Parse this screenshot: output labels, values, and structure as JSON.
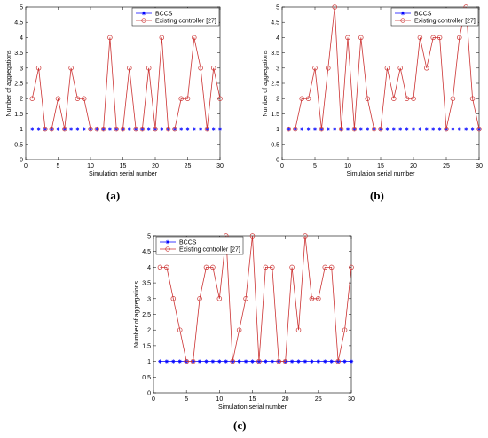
{
  "chart_data": [
    {
      "id": "a",
      "type": "line",
      "caption": "(a)",
      "xlabel": "Simulation serial number",
      "ylabel": "Number of aggregations",
      "xlim": [
        0,
        30
      ],
      "ylim": [
        0,
        5
      ],
      "xticks": [
        0,
        5,
        10,
        15,
        20,
        25,
        30
      ],
      "yticks": [
        0,
        0.5,
        1,
        1.5,
        2,
        2.5,
        3,
        3.5,
        4,
        4.5,
        5
      ],
      "grid": false,
      "legend_position": "top-right",
      "series": [
        {
          "name": "BCCS",
          "color": "#0000ff",
          "marker": "star",
          "x": [
            1,
            2,
            3,
            4,
            5,
            6,
            7,
            8,
            9,
            10,
            11,
            12,
            13,
            14,
            15,
            16,
            17,
            18,
            19,
            20,
            21,
            22,
            23,
            24,
            25,
            26,
            27,
            28,
            29,
            30
          ],
          "values": [
            1,
            1,
            1,
            1,
            1,
            1,
            1,
            1,
            1,
            1,
            1,
            1,
            1,
            1,
            1,
            1,
            1,
            1,
            1,
            1,
            1,
            1,
            1,
            1,
            1,
            1,
            1,
            1,
            1,
            1
          ]
        },
        {
          "name": "Existing controller [27]",
          "color": "#cc3333",
          "marker": "circle",
          "x": [
            1,
            2,
            3,
            4,
            5,
            6,
            7,
            8,
            9,
            10,
            11,
            12,
            13,
            14,
            15,
            16,
            17,
            18,
            19,
            20,
            21,
            22,
            23,
            24,
            25,
            26,
            27,
            28,
            29,
            30
          ],
          "values": [
            2,
            3,
            1,
            1,
            2,
            1,
            3,
            2,
            2,
            1,
            1,
            1,
            4,
            1,
            1,
            3,
            1,
            1,
            3,
            1,
            4,
            1,
            1,
            2,
            2,
            4,
            3,
            1,
            3,
            2
          ]
        }
      ]
    },
    {
      "id": "b",
      "type": "line",
      "caption": "(b)",
      "xlabel": "Simulation serial number",
      "ylabel": "Number of aggregations",
      "xlim": [
        0,
        30
      ],
      "ylim": [
        0,
        5
      ],
      "xticks": [
        0,
        5,
        10,
        15,
        20,
        25,
        30
      ],
      "yticks": [
        0,
        0.5,
        1,
        1.5,
        2,
        2.5,
        3,
        3.5,
        4,
        4.5,
        5
      ],
      "grid": false,
      "legend_position": "top-right",
      "series": [
        {
          "name": "BCCS",
          "color": "#0000ff",
          "marker": "star",
          "x": [
            1,
            2,
            3,
            4,
            5,
            6,
            7,
            8,
            9,
            10,
            11,
            12,
            13,
            14,
            15,
            16,
            17,
            18,
            19,
            20,
            21,
            22,
            23,
            24,
            25,
            26,
            27,
            28,
            29,
            30
          ],
          "values": [
            1,
            1,
            1,
            1,
            1,
            1,
            1,
            1,
            1,
            1,
            1,
            1,
            1,
            1,
            1,
            1,
            1,
            1,
            1,
            1,
            1,
            1,
            1,
            1,
            1,
            1,
            1,
            1,
            1,
            1
          ]
        },
        {
          "name": "Existing controller [27]",
          "color": "#cc3333",
          "marker": "circle",
          "x": [
            1,
            2,
            3,
            4,
            5,
            6,
            7,
            8,
            9,
            10,
            11,
            12,
            13,
            14,
            15,
            16,
            17,
            18,
            19,
            20,
            21,
            22,
            23,
            24,
            25,
            26,
            27,
            28,
            29,
            30
          ],
          "values": [
            1,
            1,
            2,
            2,
            3,
            1,
            3,
            5,
            1,
            4,
            1,
            4,
            2,
            1,
            1,
            3,
            2,
            3,
            2,
            2,
            4,
            3,
            4,
            4,
            1,
            2,
            4,
            5,
            2,
            1
          ]
        }
      ]
    },
    {
      "id": "c",
      "type": "line",
      "caption": "(c)",
      "xlabel": "Simulation serial number",
      "ylabel": "Number of aggregations",
      "xlim": [
        0,
        30
      ],
      "ylim": [
        0,
        5
      ],
      "xticks": [
        0,
        5,
        10,
        15,
        20,
        25,
        30
      ],
      "yticks": [
        0,
        0.5,
        1,
        1.5,
        2,
        2.5,
        3,
        3.5,
        4,
        4.5,
        5
      ],
      "grid": false,
      "legend_position": "top-left",
      "series": [
        {
          "name": "BCCS",
          "color": "#0000ff",
          "marker": "star",
          "x": [
            1,
            2,
            3,
            4,
            5,
            6,
            7,
            8,
            9,
            10,
            11,
            12,
            13,
            14,
            15,
            16,
            17,
            18,
            19,
            20,
            21,
            22,
            23,
            24,
            25,
            26,
            27,
            28,
            29,
            30
          ],
          "values": [
            1,
            1,
            1,
            1,
            1,
            1,
            1,
            1,
            1,
            1,
            1,
            1,
            1,
            1,
            1,
            1,
            1,
            1,
            1,
            1,
            1,
            1,
            1,
            1,
            1,
            1,
            1,
            1,
            1,
            1
          ]
        },
        {
          "name": "Existing controller [27]",
          "color": "#cc3333",
          "marker": "circle",
          "x": [
            1,
            2,
            3,
            4,
            5,
            6,
            7,
            8,
            9,
            10,
            11,
            12,
            13,
            14,
            15,
            16,
            17,
            18,
            19,
            20,
            21,
            22,
            23,
            24,
            25,
            26,
            27,
            28,
            29,
            30
          ],
          "values": [
            4,
            4,
            3,
            2,
            1,
            1,
            3,
            4,
            4,
            3,
            5,
            1,
            2,
            3,
            5,
            1,
            4,
            4,
            1,
            1,
            4,
            2,
            5,
            3,
            3,
            4,
            4,
            1,
            2,
            4
          ]
        }
      ]
    }
  ]
}
